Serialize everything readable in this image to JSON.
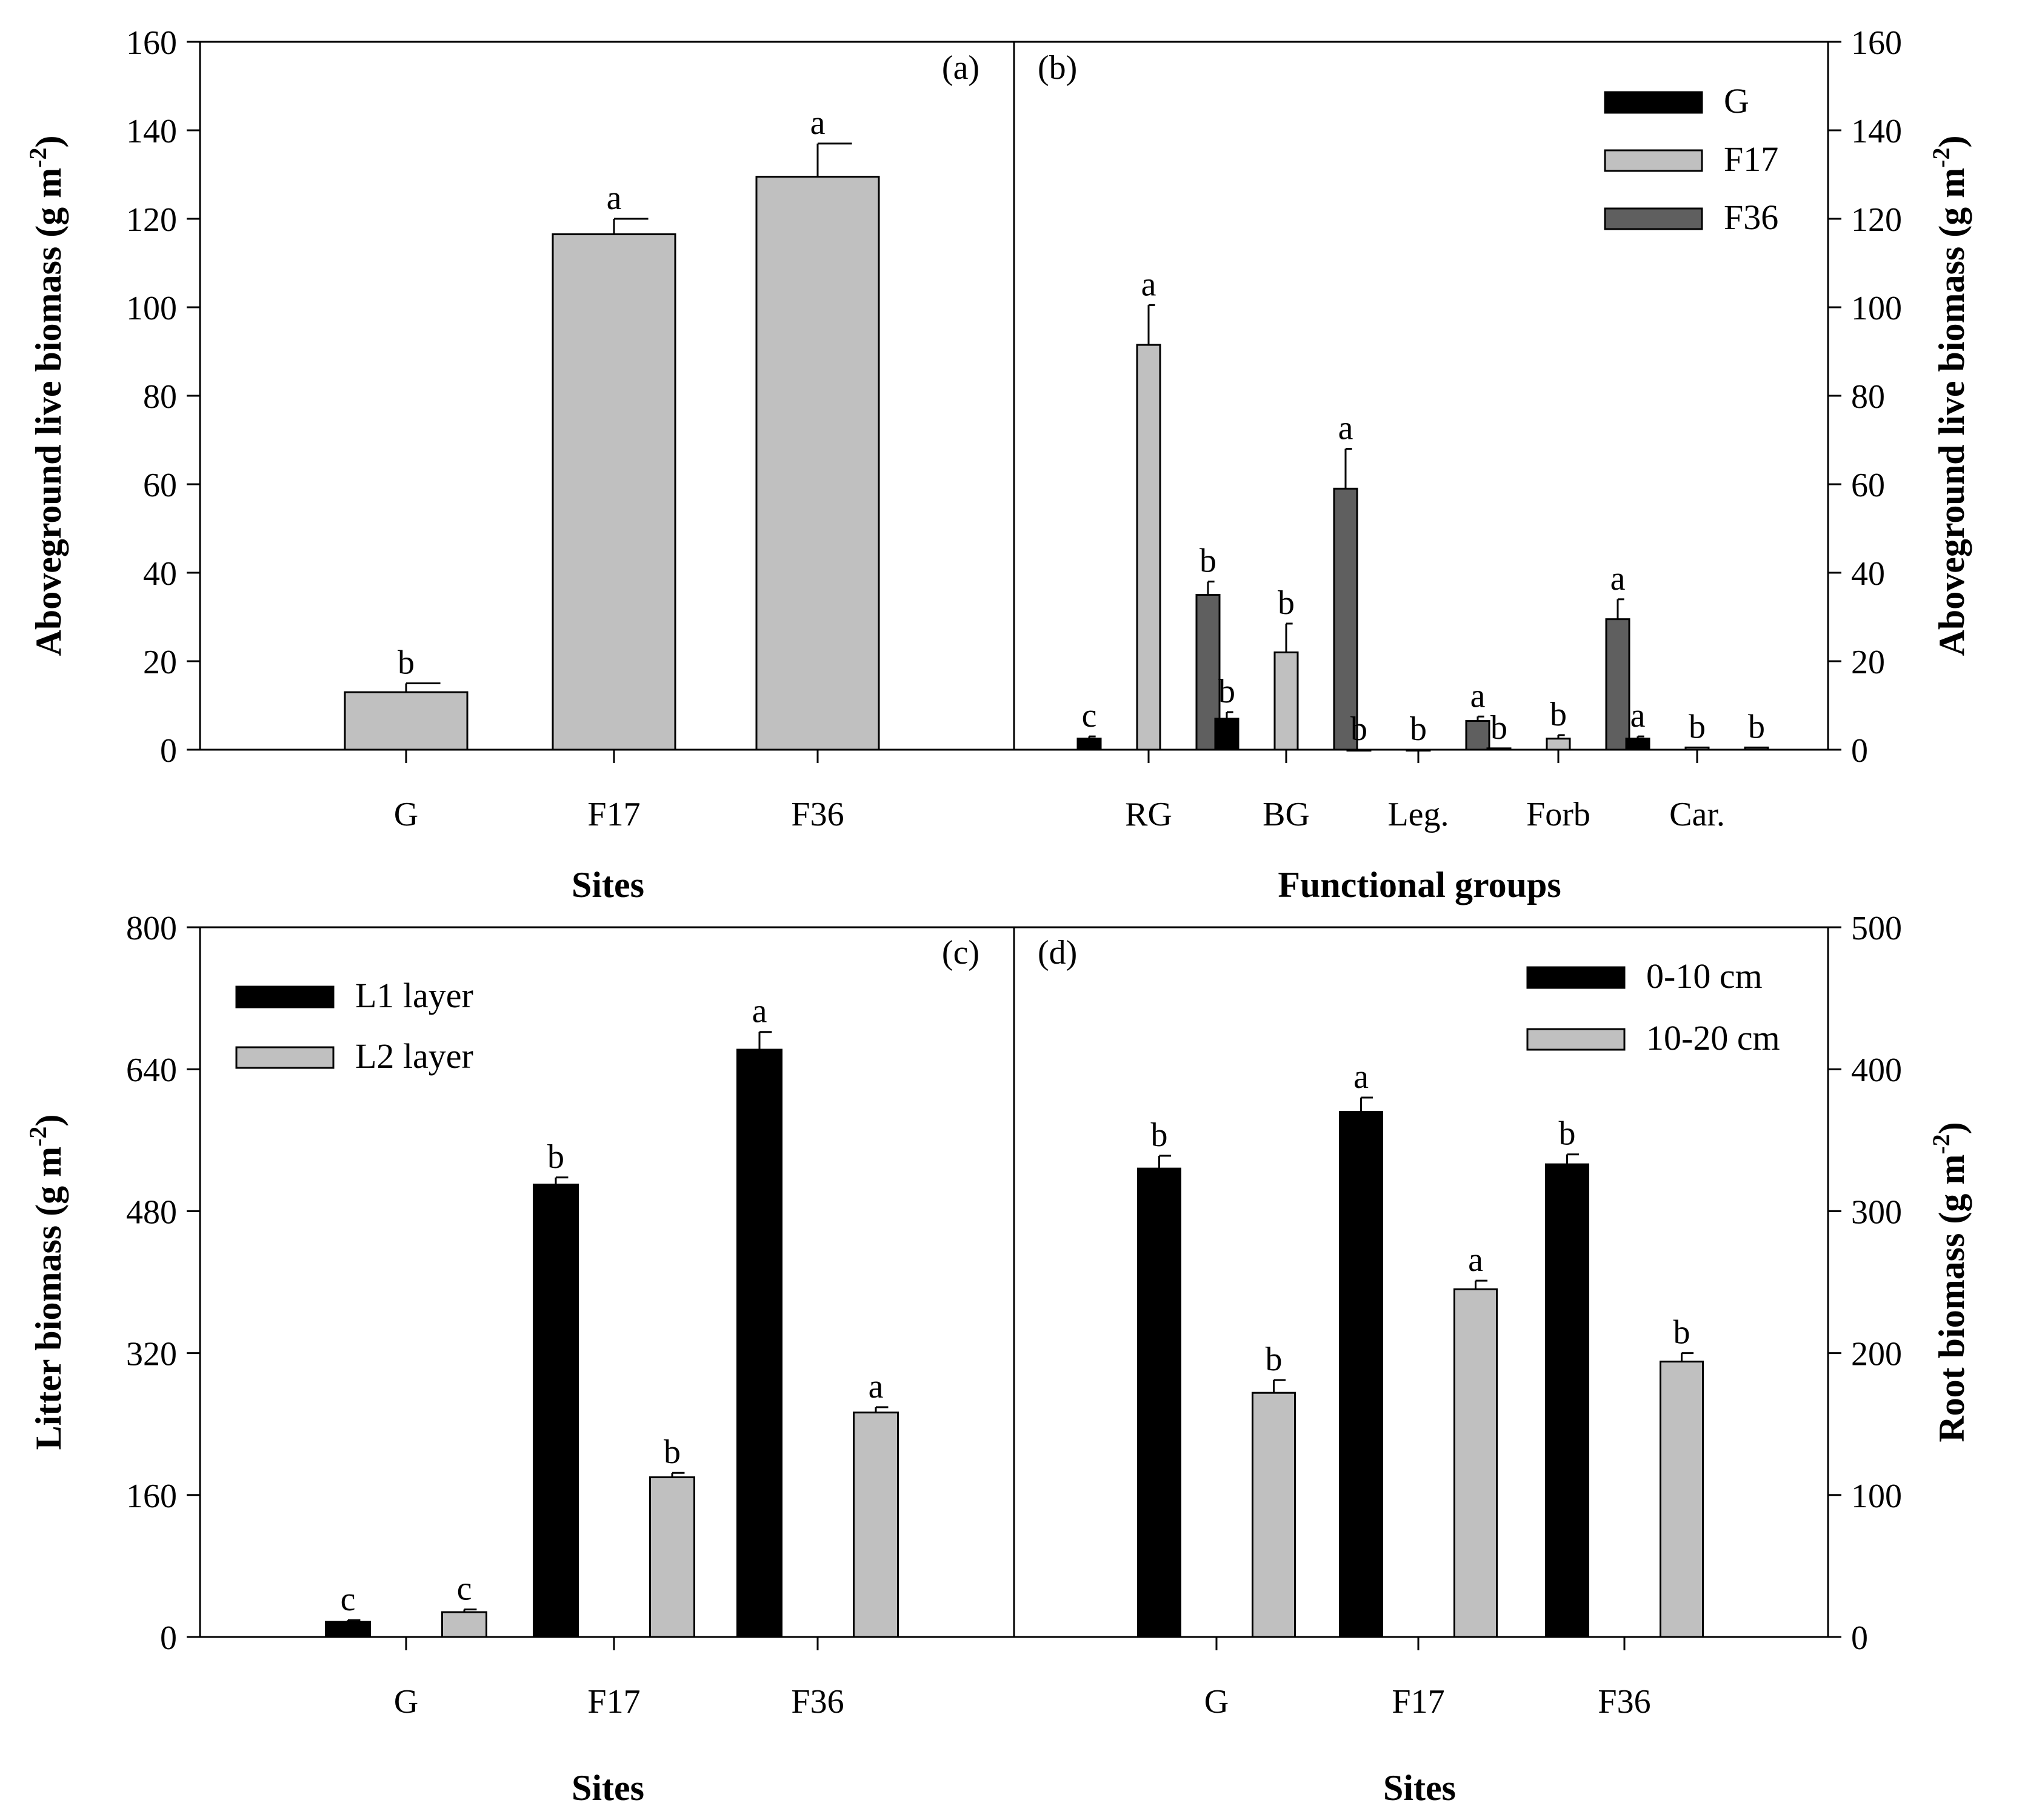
{
  "colors": {
    "black": "#000000",
    "light_gray": "#c0c0c0",
    "dark_gray": "#5f5f5f"
  },
  "chart_data": [
    {
      "id": "a",
      "type": "bar",
      "panel_label": "(a)",
      "xlabel": "Sites",
      "ylabel": "Aboveground live biomass (g m",
      "ylabel_sup": "-2",
      "ylabel_end": ")",
      "ylim": [
        0,
        160
      ],
      "yticks": [
        "0",
        "20",
        "40",
        "60",
        "80",
        "100",
        "120",
        "140",
        "160"
      ],
      "categories": [
        "G",
        "F17",
        "F36"
      ],
      "series": [
        {
          "name": "Aboveground live biomass",
          "color": "#c0c0c0",
          "values": [
            13,
            116.5,
            129.5
          ],
          "errors": [
            2,
            3.5,
            7.5
          ],
          "letters": [
            "b",
            "a",
            "a"
          ]
        }
      ]
    },
    {
      "id": "b",
      "type": "bar",
      "panel_label": "(b)",
      "xlabel": "Functional groups",
      "ylabel": "Aboveground live biomass (g m",
      "ylabel_sup": "-2",
      "ylabel_end": ")",
      "ylim": [
        0,
        160
      ],
      "yticks": [
        "0",
        "20",
        "40",
        "60",
        "80",
        "100",
        "120",
        "140",
        "160"
      ],
      "categories": [
        "RG",
        "BG",
        "Leg.",
        "Forb",
        "Car."
      ],
      "legend_position": "top-right",
      "series": [
        {
          "name": "G",
          "color": "#000000",
          "values": [
            2.5,
            7,
            0,
            0.3,
            2.5
          ],
          "errors": [
            0.5,
            1.5,
            0,
            0,
            0.5
          ],
          "letters": [
            "c",
            "b",
            "b",
            "b",
            "a"
          ]
        },
        {
          "name": "F17",
          "color": "#c0c0c0",
          "values": [
            91.5,
            22,
            0,
            2.5,
            0.5
          ],
          "errors": [
            9,
            6.5,
            0,
            0.8,
            0
          ],
          "letters": [
            "a",
            "b",
            "b",
            "b",
            "b"
          ]
        },
        {
          "name": "F36",
          "color": "#5f5f5f",
          "values": [
            35,
            59,
            6.5,
            29.5,
            0.5
          ],
          "errors": [
            3,
            9,
            1,
            4.5,
            0
          ],
          "letters": [
            "b",
            "a",
            "a",
            "a",
            "b"
          ]
        }
      ]
    },
    {
      "id": "c",
      "type": "bar",
      "panel_label": "(c)",
      "xlabel": "Sites",
      "ylabel": "Litter biomass (g m",
      "ylabel_sup": "-2",
      "ylabel_end": ")",
      "ylim": [
        0,
        800
      ],
      "yticks": [
        "0",
        "160",
        "320",
        "480",
        "640",
        "800"
      ],
      "categories": [
        "G",
        "F17",
        "F36"
      ],
      "legend_position": "top-left",
      "series": [
        {
          "name": "L1 layer",
          "color": "#000000",
          "values": [
            17,
            510,
            662
          ],
          "errors": [
            2,
            8,
            20
          ],
          "letters": [
            "c",
            "b",
            "a"
          ]
        },
        {
          "name": "L2 layer",
          "color": "#c0c0c0",
          "values": [
            28,
            180,
            253
          ],
          "errors": [
            3,
            5,
            6
          ],
          "letters": [
            "c",
            "b",
            "a"
          ]
        }
      ]
    },
    {
      "id": "d",
      "type": "bar",
      "panel_label": "(d)",
      "xlabel": "Sites",
      "ylabel": "Root biomass (g m",
      "ylabel_sup": "-2",
      "ylabel_end": ")",
      "ylim": [
        0,
        500
      ],
      "yticks": [
        "0",
        "100",
        "200",
        "300",
        "400",
        "500"
      ],
      "categories": [
        "G",
        "F17",
        "F36"
      ],
      "legend_position": "top-right",
      "series": [
        {
          "name": "0-10 cm",
          "color": "#000000",
          "values": [
            330,
            370,
            333
          ],
          "errors": [
            9,
            10,
            7
          ],
          "letters": [
            "b",
            "a",
            "b"
          ]
        },
        {
          "name": "10-20 cm",
          "color": "#c0c0c0",
          "values": [
            172,
            245,
            194
          ],
          "errors": [
            9,
            6,
            6
          ],
          "letters": [
            "b",
            "a",
            "b"
          ]
        }
      ]
    }
  ]
}
